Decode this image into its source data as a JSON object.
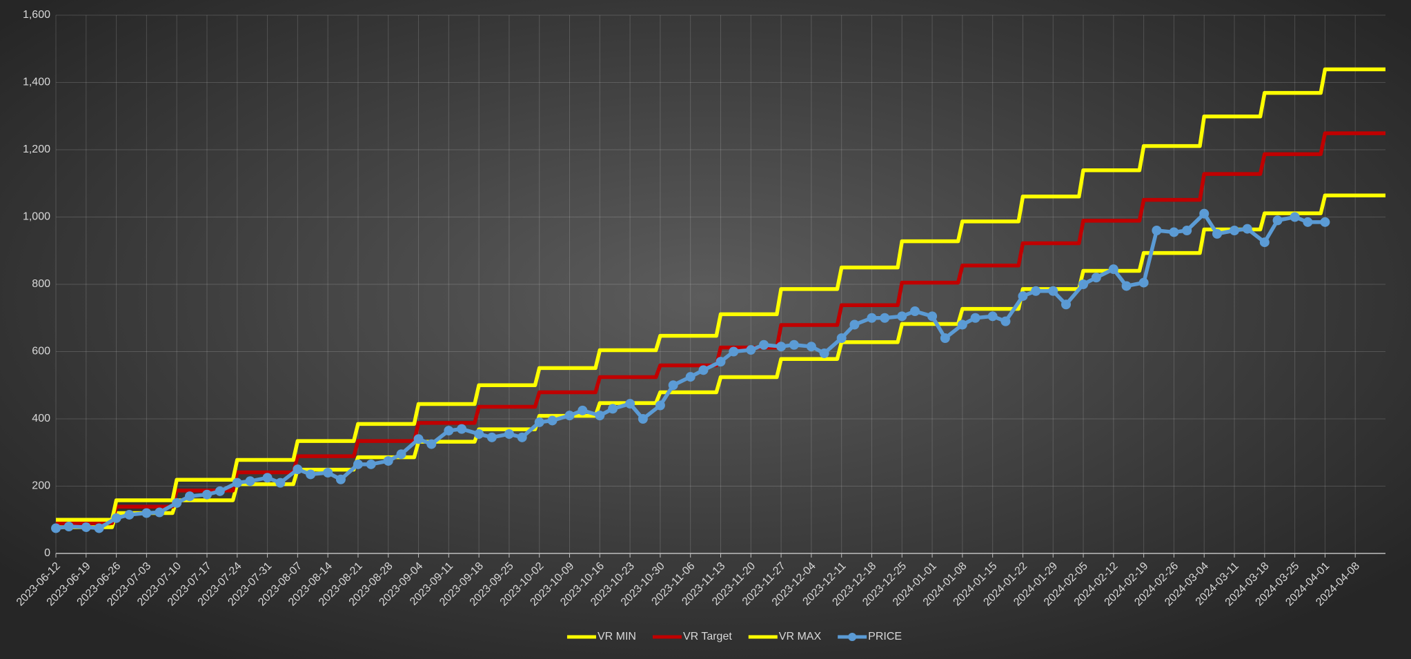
{
  "chart_data": {
    "type": "line",
    "xlim": [
      "2023-06-12",
      "2024-04-15"
    ],
    "xticks": [
      "2023-06-12",
      "2023-06-19",
      "2023-06-26",
      "2023-07-03",
      "2023-07-10",
      "2023-07-17",
      "2023-07-24",
      "2023-07-31",
      "2023-08-07",
      "2023-08-14",
      "2023-08-21",
      "2023-08-28",
      "2023-09-04",
      "2023-09-11",
      "2023-09-18",
      "2023-09-25",
      "2023-10-02",
      "2023-10-09",
      "2023-10-16",
      "2023-10-23",
      "2023-10-30",
      "2023-11-06",
      "2023-11-13",
      "2023-11-20",
      "2023-11-27",
      "2023-12-04",
      "2023-12-11",
      "2023-12-18",
      "2023-12-25",
      "2024-01-01",
      "2024-01-08",
      "2024-01-15",
      "2024-01-22",
      "2024-01-29",
      "2024-02-05",
      "2024-02-12",
      "2024-02-19",
      "2024-02-26",
      "2024-03-04",
      "2024-03-11",
      "2024-03-18",
      "2024-03-25",
      "2024-04-01",
      "2024-04-08"
    ],
    "ylim": [
      0,
      1600
    ],
    "yticks": [
      0,
      200,
      400,
      600,
      800,
      {
        "value": 1000,
        "label": "1,000"
      },
      {
        "value": 1200,
        "label": "1,200"
      },
      {
        "value": 1400,
        "label": "1,400"
      },
      {
        "value": 1600,
        "label": "1,600"
      }
    ],
    "grid": true,
    "legend": "bottom",
    "series": [
      {
        "name": "VR MIN",
        "color": "#ffff00",
        "markers": false,
        "x": [
          "2023-06-12",
          "2023-06-25",
          "2023-06-26",
          "2023-07-09",
          "2023-07-10",
          "2023-07-23",
          "2023-07-24",
          "2023-08-06",
          "2023-08-07",
          "2023-08-20",
          "2023-08-21",
          "2023-09-03",
          "2023-09-04",
          "2023-09-17",
          "2023-09-18",
          "2023-10-01",
          "2023-10-02",
          "2023-10-15",
          "2023-10-16",
          "2023-10-29",
          "2023-10-30",
          "2023-11-12",
          "2023-11-13",
          "2023-11-26",
          "2023-11-27",
          "2023-12-10",
          "2023-12-11",
          "2023-12-24",
          "2023-12-25",
          "2024-01-07",
          "2024-01-08",
          "2024-01-21",
          "2024-01-22",
          "2024-02-04",
          "2024-02-05",
          "2024-02-18",
          "2024-02-19",
          "2024-03-03",
          "2024-03-04",
          "2024-03-17",
          "2024-03-18",
          "2024-03-31",
          "2024-04-01",
          "2024-04-15"
        ],
        "values": [
          78,
          78,
          120,
          120,
          158,
          158,
          206,
          206,
          249,
          249,
          286,
          286,
          332,
          332,
          369,
          369,
          409,
          409,
          447,
          447,
          479,
          479,
          524,
          524,
          578,
          578,
          628,
          628,
          682,
          682,
          727,
          727,
          786,
          786,
          840,
          840,
          893,
          893,
          963,
          963,
          1011,
          1011,
          1064,
          1064
        ]
      },
      {
        "name": "VR Target",
        "color": "#c00000",
        "markers": false,
        "x": [
          "2023-06-12",
          "2023-06-25",
          "2023-06-26",
          "2023-07-09",
          "2023-07-10",
          "2023-07-23",
          "2023-07-24",
          "2023-08-06",
          "2023-08-07",
          "2023-08-20",
          "2023-08-21",
          "2023-09-03",
          "2023-09-04",
          "2023-09-17",
          "2023-09-18",
          "2023-10-01",
          "2023-10-02",
          "2023-10-15",
          "2023-10-16",
          "2023-10-29",
          "2023-10-30",
          "2023-11-12",
          "2023-11-13",
          "2023-11-26",
          "2023-11-27",
          "2023-12-10",
          "2023-12-11",
          "2023-12-24",
          "2023-12-25",
          "2024-01-07",
          "2024-01-08",
          "2024-01-21",
          "2024-01-22",
          "2024-02-04",
          "2024-02-05",
          "2024-02-18",
          "2024-02-19",
          "2024-03-03",
          "2024-03-04",
          "2024-03-17",
          "2024-03-18",
          "2024-03-31",
          "2024-04-01",
          "2024-04-15"
        ],
        "values": [
          90,
          90,
          139,
          139,
          187,
          187,
          241,
          241,
          289,
          289,
          334,
          334,
          388,
          388,
          436,
          436,
          479,
          479,
          524,
          524,
          559,
          559,
          612,
          612,
          679,
          679,
          738,
          738,
          805,
          805,
          856,
          856,
          922,
          922,
          989,
          989,
          1051,
          1051,
          1128,
          1128,
          1187,
          1187,
          1249,
          1249
        ]
      },
      {
        "name": "VR MAX",
        "color": "#ffff00",
        "markers": false,
        "x": [
          "2023-06-12",
          "2023-06-25",
          "2023-06-26",
          "2023-07-09",
          "2023-07-10",
          "2023-07-23",
          "2023-07-24",
          "2023-08-06",
          "2023-08-07",
          "2023-08-20",
          "2023-08-21",
          "2023-09-03",
          "2023-09-04",
          "2023-09-17",
          "2023-09-18",
          "2023-10-01",
          "2023-10-02",
          "2023-10-15",
          "2023-10-16",
          "2023-10-29",
          "2023-10-30",
          "2023-11-12",
          "2023-11-13",
          "2023-11-26",
          "2023-11-27",
          "2023-12-10",
          "2023-12-11",
          "2023-12-24",
          "2023-12-25",
          "2024-01-07",
          "2024-01-08",
          "2024-01-21",
          "2024-01-22",
          "2024-02-04",
          "2024-02-05",
          "2024-02-18",
          "2024-02-19",
          "2024-03-03",
          "2024-03-04",
          "2024-03-17",
          "2024-03-18",
          "2024-03-31",
          "2024-04-01",
          "2024-04-15"
        ],
        "values": [
          100,
          100,
          158,
          158,
          219,
          219,
          278,
          278,
          334,
          334,
          385,
          385,
          444,
          444,
          500,
          500,
          551,
          551,
          604,
          604,
          647,
          647,
          711,
          711,
          786,
          786,
          850,
          850,
          928,
          928,
          987,
          987,
          1061,
          1061,
          1139,
          1139,
          1211,
          1211,
          1299,
          1299,
          1369,
          1369,
          1439,
          1439
        ]
      },
      {
        "name": "PRICE",
        "color": "#5b9bd5",
        "markers": true,
        "x": [
          "2023-06-12",
          "2023-06-15",
          "2023-06-19",
          "2023-06-22",
          "2023-06-26",
          "2023-06-29",
          "2023-07-03",
          "2023-07-06",
          "2023-07-10",
          "2023-07-13",
          "2023-07-17",
          "2023-07-20",
          "2023-07-24",
          "2023-07-27",
          "2023-07-31",
          "2023-08-03",
          "2023-08-07",
          "2023-08-10",
          "2023-08-14",
          "2023-08-17",
          "2023-08-21",
          "2023-08-24",
          "2023-08-28",
          "2023-08-31",
          "2023-09-04",
          "2023-09-07",
          "2023-09-11",
          "2023-09-14",
          "2023-09-18",
          "2023-09-21",
          "2023-09-25",
          "2023-09-28",
          "2023-10-02",
          "2023-10-05",
          "2023-10-09",
          "2023-10-12",
          "2023-10-16",
          "2023-10-19",
          "2023-10-23",
          "2023-10-26",
          "2023-10-30",
          "2023-11-02",
          "2023-11-06",
          "2023-11-09",
          "2023-11-13",
          "2023-11-16",
          "2023-11-20",
          "2023-11-23",
          "2023-11-27",
          "2023-11-30",
          "2023-12-04",
          "2023-12-07",
          "2023-12-11",
          "2023-12-14",
          "2023-12-18",
          "2023-12-21",
          "2023-12-25",
          "2023-12-28",
          "2024-01-01",
          "2024-01-04",
          "2024-01-08",
          "2024-01-11",
          "2024-01-15",
          "2024-01-18",
          "2024-01-22",
          "2024-01-25",
          "2024-01-29",
          "2024-02-01",
          "2024-02-05",
          "2024-02-08",
          "2024-02-12",
          "2024-02-15",
          "2024-02-19",
          "2024-02-22",
          "2024-02-26",
          "2024-02-29",
          "2024-03-04",
          "2024-03-07",
          "2024-03-11",
          "2024-03-14",
          "2024-03-18",
          "2024-03-21",
          "2024-03-25",
          "2024-03-28",
          "2024-04-01"
        ],
        "values": [
          75,
          80,
          78,
          75,
          105,
          115,
          120,
          122,
          150,
          170,
          175,
          185,
          210,
          215,
          225,
          210,
          250,
          235,
          240,
          220,
          265,
          265,
          275,
          295,
          340,
          325,
          365,
          370,
          355,
          345,
          355,
          345,
          390,
          395,
          410,
          425,
          410,
          430,
          445,
          400,
          440,
          500,
          525,
          545,
          570,
          600,
          605,
          620,
          615,
          620,
          615,
          595,
          640,
          680,
          700,
          700,
          705,
          720,
          705,
          640,
          680,
          700,
          705,
          690,
          765,
          780,
          780,
          740,
          800,
          820,
          845,
          795,
          805,
          960,
          955,
          960,
          1010,
          950,
          960,
          965,
          925,
          990,
          1000,
          985,
          985
        ]
      }
    ]
  }
}
